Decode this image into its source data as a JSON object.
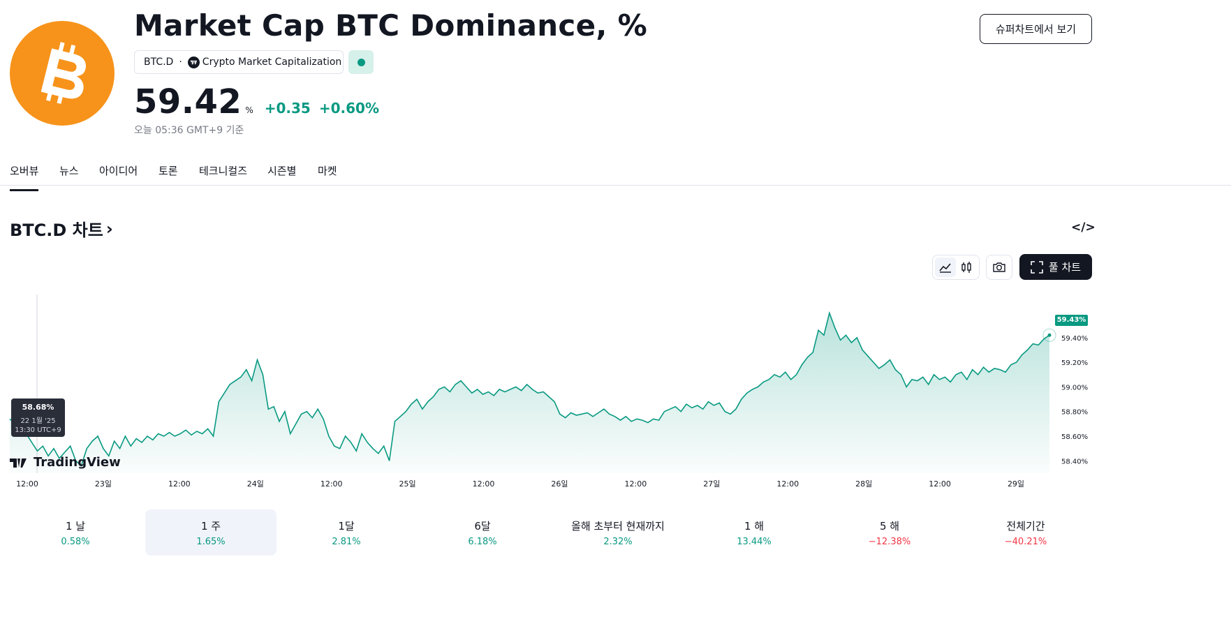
{
  "header": {
    "title": "Market Cap BTC Dominance, %",
    "ticker": "BTC.D",
    "separator": "·",
    "source": "Crypto Market Capitalization",
    "price": "59.42",
    "unit": "%",
    "change_abs": "+0.35",
    "change_pct": "+0.60%",
    "as_of": "오늘 05:36 GMT+9 기준",
    "supercharts_label": "슈퍼차트에서 보기"
  },
  "icons": {
    "logo": "bitcoin-logo",
    "badge": "tradingview-badge-icon",
    "status": "market-status-dot",
    "embed": "embed-code-icon",
    "area_chart": "area-chart-icon",
    "candles": "candlestick-icon",
    "camera": "camera-icon",
    "fullscreen": "fullscreen-icon"
  },
  "tabs": [
    {
      "label": "오버뷰",
      "active": true
    },
    {
      "label": "뉴스"
    },
    {
      "label": "아이디어"
    },
    {
      "label": "토론"
    },
    {
      "label": "테크니컬즈"
    },
    {
      "label": "시즌별"
    },
    {
      "label": "마켓"
    }
  ],
  "chart_section": {
    "title": "BTC.D 차트",
    "chevron": "›",
    "embed_label": "</>",
    "full_chart_label": "풀 차트",
    "watermark": "TradingView"
  },
  "tooltip": {
    "value": "58.68%",
    "date": "22 1월 '25",
    "time": "13:30 UTC+9"
  },
  "colors": {
    "accent": "#089981",
    "negative": "#f23645",
    "bitcoin": "#f7931a",
    "text": "#131722"
  },
  "chart_data": {
    "type": "area",
    "ylim": [
      58.3,
      59.75
    ],
    "y_ticks": [
      "59.40%",
      "59.20%",
      "59.00%",
      "58.80%",
      "58.60%",
      "58.40%"
    ],
    "y_tick_values": [
      59.4,
      59.2,
      59.0,
      58.8,
      58.6,
      58.4
    ],
    "x_ticks": [
      "12:00",
      "23일",
      "12:00",
      "24일",
      "12:00",
      "25일",
      "12:00",
      "26일",
      "12:00",
      "27일",
      "12:00",
      "28일",
      "12:00",
      "29일"
    ],
    "last_value_label": "59.43%",
    "series": [
      {
        "values": [
          58.74,
          58.7,
          58.66,
          58.62,
          58.55,
          58.48,
          58.52,
          58.44,
          58.5,
          58.42,
          58.47,
          58.52,
          58.4,
          58.36,
          58.5,
          58.56,
          58.6,
          58.5,
          58.44,
          58.56,
          58.5,
          58.6,
          58.52,
          58.58,
          58.55,
          58.6,
          58.57,
          58.62,
          58.6,
          58.63,
          58.6,
          58.62,
          58.65,
          58.61,
          58.64,
          58.62,
          58.66,
          58.6,
          58.88,
          58.95,
          59.02,
          59.05,
          59.08,
          59.14,
          59.05,
          59.22,
          59.1,
          58.82,
          58.84,
          58.72,
          58.8,
          58.62,
          58.7,
          58.78,
          58.8,
          58.75,
          58.82,
          58.74,
          58.6,
          58.52,
          58.5,
          58.6,
          58.55,
          58.48,
          58.62,
          58.55,
          58.5,
          58.46,
          58.52,
          58.4,
          58.72,
          58.76,
          58.8,
          58.86,
          58.9,
          58.82,
          58.88,
          58.92,
          58.98,
          59.0,
          58.96,
          59.02,
          59.05,
          59.0,
          58.95,
          58.98,
          58.94,
          58.96,
          58.93,
          58.98,
          58.96,
          58.98,
          59.0,
          58.97,
          59.02,
          58.98,
          58.95,
          58.96,
          58.92,
          58.88,
          58.78,
          58.75,
          58.79,
          58.77,
          58.78,
          58.79,
          58.76,
          58.79,
          58.82,
          58.78,
          58.76,
          58.73,
          58.76,
          58.72,
          58.74,
          58.73,
          58.71,
          58.74,
          58.73,
          58.8,
          58.82,
          58.84,
          58.8,
          58.86,
          58.83,
          58.85,
          58.82,
          58.88,
          58.85,
          58.87,
          58.8,
          58.78,
          58.82,
          58.9,
          58.95,
          58.98,
          59.0,
          59.04,
          59.06,
          59.1,
          59.08,
          59.12,
          59.06,
          59.1,
          59.18,
          59.24,
          59.28,
          59.46,
          59.42,
          59.6,
          59.48,
          59.38,
          59.42,
          59.36,
          59.4,
          59.3,
          59.25,
          59.2,
          59.15,
          59.18,
          59.22,
          59.14,
          59.1,
          59.0,
          59.06,
          59.05,
          59.08,
          59.02,
          59.1,
          59.06,
          59.08,
          59.04,
          59.1,
          59.12,
          59.06,
          59.14,
          59.1,
          59.16,
          59.12,
          59.15,
          59.14,
          59.12,
          59.18,
          59.2,
          59.26,
          59.3,
          59.35,
          59.34,
          59.39,
          59.42
        ]
      }
    ]
  },
  "periods": [
    {
      "label": "1 날",
      "value": "0.58%",
      "sign": "pos"
    },
    {
      "label": "1 주",
      "value": "1.65%",
      "sign": "pos",
      "active": true
    },
    {
      "label": "1달",
      "value": "2.81%",
      "sign": "pos"
    },
    {
      "label": "6달",
      "value": "6.18%",
      "sign": "pos"
    },
    {
      "label": "올해 초부터 현재까지",
      "value": "2.32%",
      "sign": "pos"
    },
    {
      "label": "1 해",
      "value": "13.44%",
      "sign": "pos"
    },
    {
      "label": "5 해",
      "value": "−12.38%",
      "sign": "neg"
    },
    {
      "label": "전체기간",
      "value": "−40.21%",
      "sign": "neg"
    }
  ]
}
